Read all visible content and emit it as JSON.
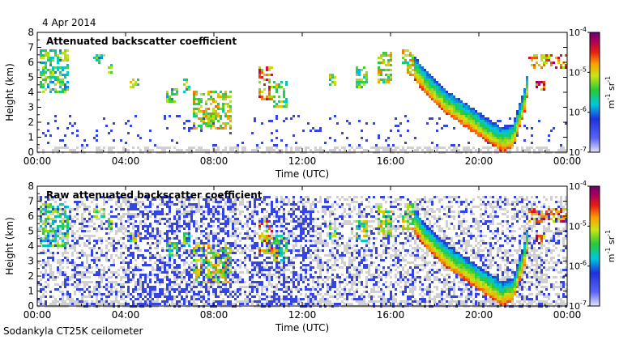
{
  "date_label": "4 Apr 2014",
  "footer": "Sodankyla CT25K ceilometer",
  "chart_data": [
    {
      "type": "heatmap",
      "title": "Attenuated backscatter coefficient",
      "xlabel": "Time (UTC)",
      "ylabel": "Height (km)",
      "xlim": [
        "00:00",
        "00:00"
      ],
      "xticks": [
        "00:00",
        "04:00",
        "08:00",
        "12:00",
        "16:00",
        "20:00",
        "00:00"
      ],
      "ylim": [
        0,
        8
      ],
      "yticks": [
        "0",
        "1",
        "2",
        "3",
        "4",
        "5",
        "6",
        "7",
        "8"
      ],
      "colorbar": {
        "scale": "log",
        "range": [
          1e-07,
          0.0001
        ],
        "tick_labels": [
          {
            "base": "10",
            "exp": "-4",
            "value": 0.0001
          },
          {
            "base": "10",
            "exp": "-5",
            "value": 1e-05
          },
          {
            "base": "10",
            "exp": "-6",
            "value": 1e-06
          },
          {
            "base": "10",
            "exp": "-7",
            "value": 1e-07
          }
        ],
        "unit": "m-1 sr-1"
      }
    },
    {
      "type": "heatmap",
      "title": "Raw attenuated backscatter coefficient",
      "xlabel": "Time (UTC)",
      "ylabel": "Height (km)",
      "xlim": [
        "00:00",
        "00:00"
      ],
      "xticks": [
        "00:00",
        "04:00",
        "08:00",
        "12:00",
        "16:00",
        "20:00",
        "00:00"
      ],
      "ylim": [
        0,
        8
      ],
      "yticks": [
        "0",
        "1",
        "2",
        "3",
        "4",
        "5",
        "6",
        "7",
        "8"
      ],
      "colorbar": {
        "scale": "log",
        "range": [
          1e-07,
          0.0001
        ],
        "tick_labels": [
          {
            "base": "10",
            "exp": "-4",
            "value": 0.0001
          },
          {
            "base": "10",
            "exp": "-5",
            "value": 1e-05
          },
          {
            "base": "10",
            "exp": "-6",
            "value": 1e-06
          },
          {
            "base": "10",
            "exp": "-7",
            "value": 1e-07
          }
        ],
        "unit": "m-1 sr-1"
      }
    }
  ],
  "colors": {
    "noise": "#d0d0d0",
    "low": "#2a3cd8",
    "mid": "#22c040",
    "high": "#f0e000",
    "peak": "#e02010"
  }
}
